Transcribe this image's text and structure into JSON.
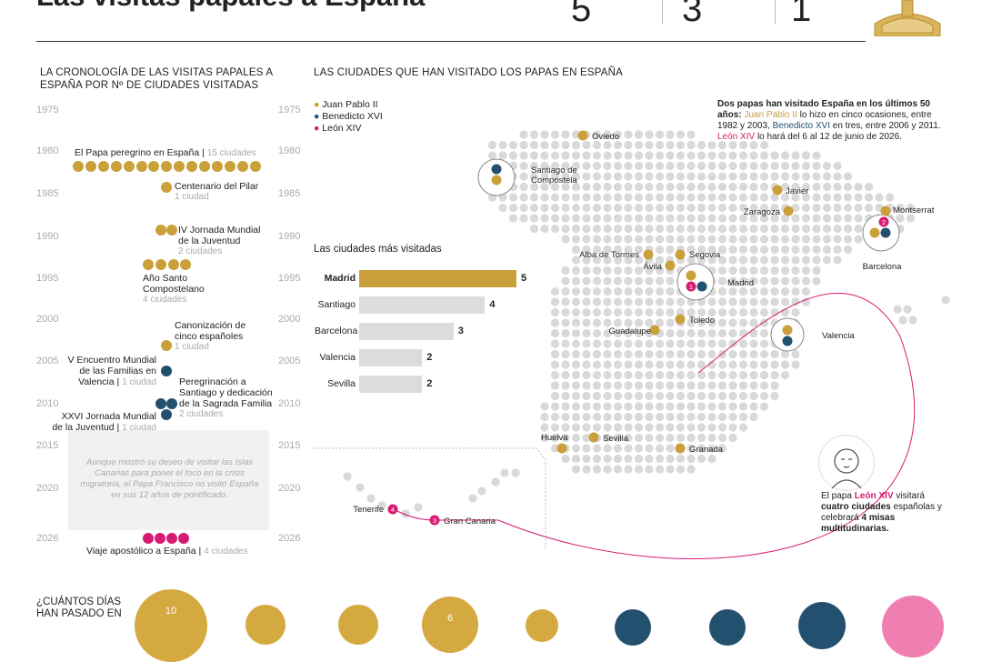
{
  "header": {
    "title": "Las visitas papales a España",
    "counts": [
      {
        "value": "5",
        "color": "#c9a03a"
      },
      {
        "value": "3",
        "color": "#23506f"
      },
      {
        "value": "1",
        "color": "#d81b72"
      }
    ]
  },
  "colors": {
    "juan_pablo": "#c9a03a",
    "benedicto": "#23506f",
    "leon": "#d81b72",
    "grid": "#d9d9d9"
  },
  "timeline": {
    "heading": "LA CRONOLOGÍA DE LAS VISITAS PAPALES A ESPAÑA POR Nº DE CIUDADES VISITADAS",
    "years": [
      "1975",
      "1980",
      "1985",
      "1990",
      "1995",
      "2000",
      "2005",
      "2010",
      "2015",
      "2020",
      "2026"
    ],
    "events": [
      {
        "label": "El Papa peregrino en España |",
        "sub": "15 ciudades"
      },
      {
        "label": "Centenario del Pilar",
        "sub": "1 ciudad"
      },
      {
        "label": "IV Jornada Mundial de la Juventud",
        "sub": "2 ciudades"
      },
      {
        "label": "Año Santo Compostelano",
        "sub": "4 ciudades"
      },
      {
        "label": "Canonización de cinco españoles",
        "sub": "1 ciudad"
      },
      {
        "label": "V Encuentro Mundial de las Familias en Valencia |",
        "sub": "1 ciudad"
      },
      {
        "label": "Peregrinación a Santiago y dedicación de la Sagrada Familia",
        "sub": "2 ciudades"
      },
      {
        "label": "XXVI Jornada Mundial de la Juventud |",
        "sub": "1 ciudad"
      },
      {
        "label": "Viaje apostólico a España |",
        "sub": "4 ciudades"
      }
    ],
    "francis_note": "Aunque mostró su deseo de visitar las Islas Canarias para poner el foco en la crisis migratoria, el Papa Francisco no visitó España en sus 12 años de pontificado."
  },
  "map": {
    "heading": "LAS CIUDADES QUE HAN VISITADO LOS PAPAS EN ESPAÑA",
    "legend": [
      "Juan Pablo II",
      "Benedicto XVI",
      "León XIV"
    ],
    "intro_bold": "Dos papas han visitado España en los últimos 50 años:",
    "intro_jp": "Juan Pablo II",
    "intro_mid1": "lo hizo en cinco ocasiones, entre 1982 y 2003,",
    "intro_bx": "Benedicto XVI",
    "intro_mid2": "en tres, entre 2006 y 2011.",
    "intro_leon": "León XIV",
    "intro_end": "lo hará del 6 al 12 de junio de 2026.",
    "cities": [
      "Oviedo",
      "Santiago de Compostela",
      "Javier",
      "Zaragoza",
      "Montserrat",
      "Barcelona",
      "Alba de Tormes",
      "Segovia",
      "Ávila",
      "Madrid",
      "Toledo",
      "Guadalupe",
      "Valencia",
      "Huelva",
      "Sevilla",
      "Granada",
      "Tenerife",
      "Gran Canaria"
    ],
    "leon_order": {
      "Barcelona": "2",
      "Madrid": "1",
      "Gran Canaria": "3",
      "Tenerife": "4"
    },
    "leon_note_a": "El papa",
    "leon_note_name": "León XIV",
    "leon_note_b": "visitará",
    "leon_note_c": "cuatro ciudades",
    "leon_note_d": "españolas y celebrará",
    "leon_note_e": "4 misas multitudinarias."
  },
  "chart_data": {
    "type": "bar",
    "title": "Las ciudades más visitadas",
    "categories": [
      "Madrid",
      "Santiago",
      "Barcelona",
      "Valencia",
      "Sevilla"
    ],
    "values": [
      5,
      4,
      3,
      2,
      2
    ],
    "xlim": [
      0,
      5
    ]
  },
  "bottom": {
    "heading": "¿CUÁNTOS DÍAS HAN PASADO EN",
    "circles": [
      "10",
      "",
      "",
      "6",
      "",
      "",
      "",
      "",
      ""
    ]
  }
}
